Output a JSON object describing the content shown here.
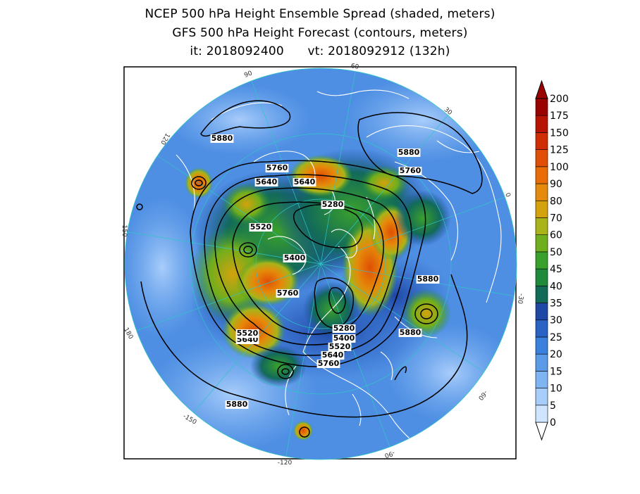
{
  "title": {
    "line1": "NCEP 500 hPa Height Ensemble Spread (shaded, meters)",
    "line2": "GFS 500 hPa Height Forecast (contours, meters)",
    "line3": "it: 2018092400      vt: 2018092912 (132h)"
  },
  "colorbar": {
    "levels": [
      "0",
      "5",
      "10",
      "15",
      "20",
      "25",
      "30",
      "35",
      "40",
      "45",
      "50",
      "60",
      "70",
      "80",
      "90",
      "100",
      "125",
      "150",
      "175",
      "200"
    ],
    "colors": [
      "#cfe4ff",
      "#a9cdfb",
      "#7fb4f2",
      "#5a9be8",
      "#3a81de",
      "#2a62c6",
      "#1f47a5",
      "#126a59",
      "#1e8a3c",
      "#3aa02c",
      "#6fae1d",
      "#a8b41a",
      "#d4a20d",
      "#e58a0a",
      "#e86d06",
      "#e04f05",
      "#d12d04",
      "#b81403",
      "#9a0202"
    ]
  },
  "map": {
    "longitude_labels": [
      "90",
      "60",
      "30",
      "0",
      "-30",
      "-60",
      "-90",
      "-120",
      "-150",
      "180",
      "150",
      "120"
    ],
    "contour_labels": [
      "5880",
      "5760",
      "5640",
      "5640",
      "5280",
      "5520",
      "5400",
      "5760",
      "5880",
      "5640",
      "5520",
      "5280",
      "5400",
      "5520",
      "5640",
      "5760",
      "5880",
      "5880",
      "5880",
      "5760"
    ],
    "colors": {
      "ocean": "#4f8fe3",
      "coast": "#ffffff",
      "grid": "#2ec6c6",
      "contour": "#000000"
    }
  }
}
